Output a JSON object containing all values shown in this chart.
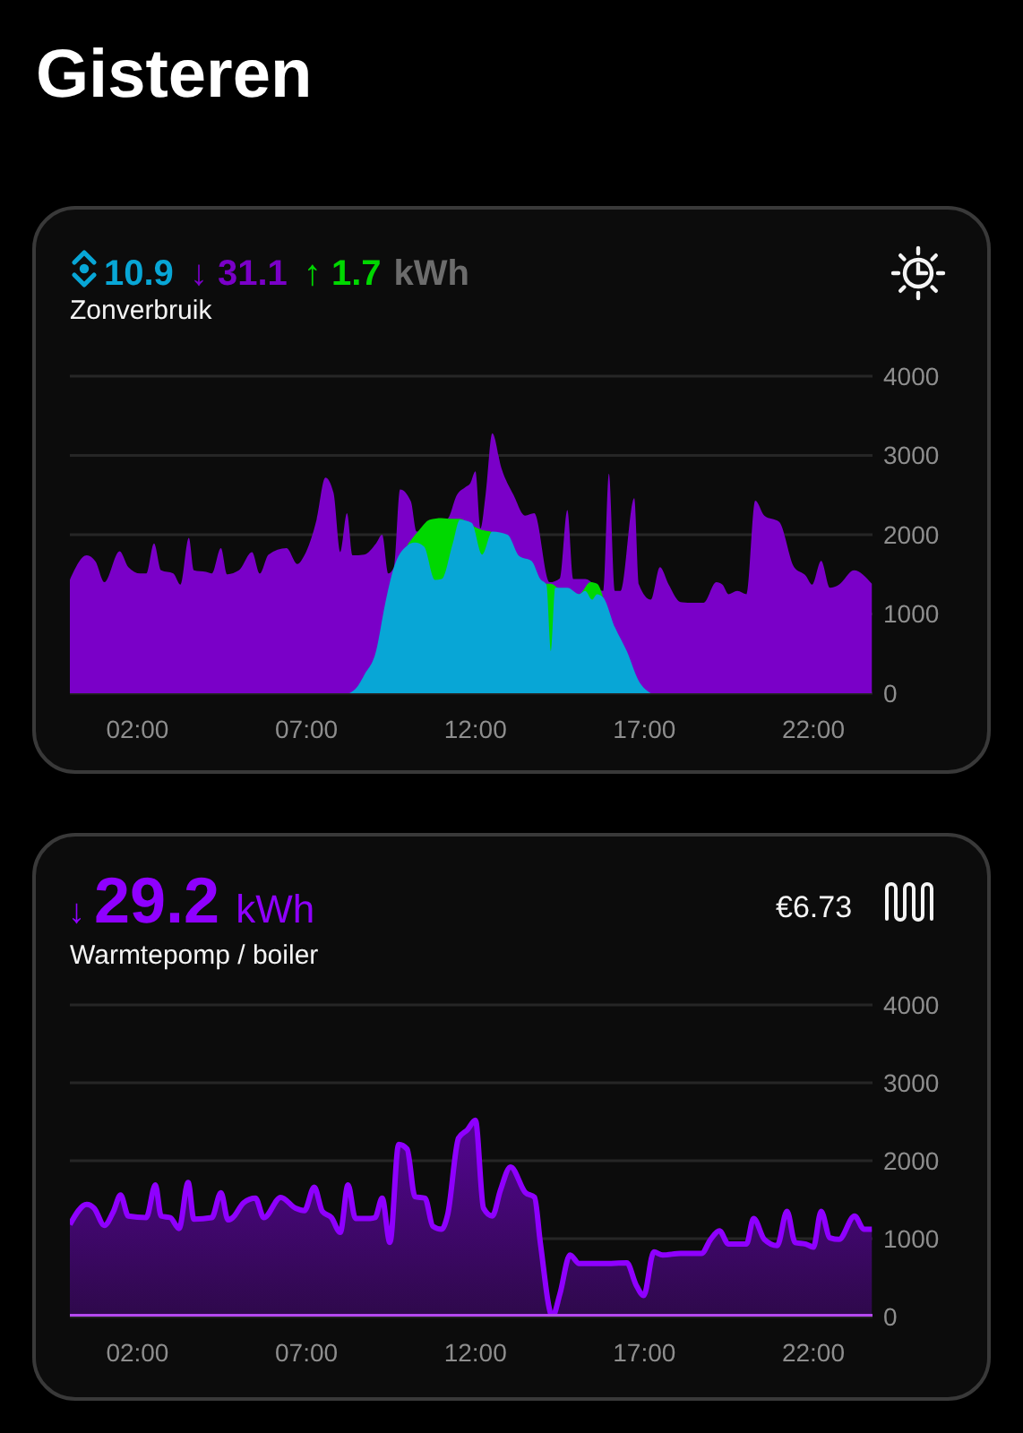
{
  "chart_data": [
    {
      "type": "area",
      "title": "Zonverbruik",
      "annotations": [
        "Gisteren",
        "10.9",
        "↓ 31.1",
        "↑ 1.7",
        "kWh"
      ],
      "xlim": [
        0,
        23.75
      ],
      "xticks": [
        {
          "value": 2,
          "label": "02:00"
        },
        {
          "value": 7,
          "label": "07:00"
        },
        {
          "value": 12,
          "label": "12:00"
        },
        {
          "value": 17,
          "label": "17:00"
        },
        {
          "value": 22,
          "label": "22:00"
        }
      ],
      "ylim": [
        0,
        4000
      ],
      "yticks": [
        0,
        1000,
        2000,
        3000,
        4000
      ],
      "grid": "y",
      "series": [
        {
          "color": "#7a00c8",
          "x": [
            0,
            0.5,
            0.76,
            1.02,
            1.47,
            1.73,
            2.08,
            2.26,
            2.49,
            2.7,
            3.06,
            3.27,
            3.52,
            3.67,
            4.03,
            4.2,
            4.47,
            4.65,
            5.0,
            5.39,
            5.62,
            5.88,
            6.41,
            6.73,
            6.94,
            7.3,
            7.56,
            7.8,
            8.0,
            8.2,
            8.36,
            8.71,
            9.06,
            9.24,
            9.42,
            9.59,
            9.77,
            10.09,
            10.26,
            11.18,
            11.45,
            11.7,
            11.85,
            12.0,
            12.15,
            12.3,
            12.5,
            12.77,
            13.13,
            13.47,
            13.74,
            14.2,
            14.5,
            14.72,
            14.9,
            15.25,
            15.78,
            15.95,
            16.13,
            16.3,
            16.7,
            16.84,
            17.19,
            17.46,
            17.72,
            18.07,
            18.43,
            18.75,
            19.13,
            19.31,
            19.49,
            19.75,
            20.02,
            20.28,
            20.55,
            20.99,
            21.43,
            21.78,
            21.96,
            22.23,
            22.49,
            22.76,
            23.2,
            23.73
          ],
          "values": [
            1430,
            1740,
            1660,
            1400,
            1790,
            1590,
            1510,
            1510,
            1890,
            1550,
            1510,
            1370,
            1960,
            1550,
            1530,
            1510,
            1830,
            1500,
            1550,
            1780,
            1510,
            1750,
            1830,
            1630,
            1740,
            2190,
            2720,
            2530,
            1780,
            2270,
            1740,
            1750,
            1890,
            2000,
            1510,
            1590,
            2570,
            2420,
            2040,
            2200,
            2500,
            2600,
            2650,
            2800,
            2080,
            2500,
            3280,
            2840,
            2500,
            2240,
            2270,
            1400,
            1450,
            2310,
            1440,
            1440,
            1290,
            2770,
            1290,
            1290,
            2460,
            1370,
            1180,
            1590,
            1370,
            1150,
            1140,
            1140,
            1400,
            1370,
            1250,
            1290,
            1250,
            2430,
            2240,
            2160,
            1590,
            1480,
            1370,
            1670,
            1330,
            1370,
            1550,
            1380
          ]
        },
        {
          "color": "#00d800",
          "x": [
            10.0,
            10.3,
            10.65,
            11.0,
            11.3,
            11.54,
            11.89,
            12.2,
            12.45,
            13.9,
            14.1,
            14.24,
            14.4,
            15.07,
            15.4,
            15.6,
            15.78
          ],
          "values": [
            1880,
            2040,
            2190,
            2210,
            2200,
            2200,
            2120,
            2060,
            2040,
            1440,
            1380,
            1380,
            1340,
            1250,
            1400,
            1380,
            1210
          ]
        },
        {
          "color": "#08a6d6",
          "x": [
            8.27,
            8.5,
            8.71,
            9.06,
            9.33,
            9.59,
            9.95,
            10.21,
            10.48,
            10.8,
            11.0,
            11.33,
            11.54,
            11.89,
            12.2,
            12.5,
            12.95,
            13.3,
            13.66,
            13.92,
            14.1,
            14.24,
            14.36,
            14.72,
            15.07,
            15.25,
            15.45,
            15.6,
            15.78,
            16.13,
            16.48,
            16.84,
            17.19
          ],
          "values": [
            0,
            80,
            230,
            530,
            1130,
            1590,
            1850,
            1900,
            1850,
            1430,
            1440,
            1890,
            2190,
            2150,
            1750,
            2040,
            2000,
            1730,
            1670,
            1440,
            1370,
            530,
            1330,
            1330,
            1250,
            1290,
            1180,
            1250,
            1210,
            830,
            530,
            150,
            0
          ]
        }
      ]
    },
    {
      "type": "area",
      "title": "Warmtepomp / boiler",
      "annotations": [
        "↓",
        "29.2",
        "kWh",
        "€6.73"
      ],
      "xlim": [
        0,
        23.75
      ],
      "xticks": [
        {
          "value": 2,
          "label": "02:00"
        },
        {
          "value": 7,
          "label": "07:00"
        },
        {
          "value": 12,
          "label": "12:00"
        },
        {
          "value": 17,
          "label": "17:00"
        },
        {
          "value": 22,
          "label": "22:00"
        }
      ],
      "ylim": [
        0,
        4000
      ],
      "yticks": [
        0,
        1000,
        2000,
        3000,
        4000
      ],
      "grid": "y",
      "line_style": "solid",
      "series": [
        {
          "color": "#8f00ff",
          "x": [
            0,
            0.5,
            0.72,
            1.02,
            1.29,
            1.5,
            1.73,
            2.26,
            2.53,
            2.7,
            2.97,
            3.23,
            3.5,
            3.67,
            4.2,
            4.47,
            4.68,
            4.82,
            5.14,
            5.49,
            5.74,
            6.24,
            6.68,
            6.94,
            7.23,
            7.47,
            7.74,
            8.0,
            8.23,
            8.45,
            8.89,
            9.03,
            9.24,
            9.47,
            9.73,
            9.98,
            10.21,
            10.51,
            10.74,
            11.0,
            11.18,
            11.5,
            11.77,
            12.0,
            12.24,
            12.5,
            12.74,
            13.04,
            13.48,
            13.75,
            13.92,
            14.28,
            14.5,
            14.8,
            15.07,
            15.78,
            16.48,
            16.75,
            16.98,
            17.28,
            17.54,
            18.07,
            18.69,
            18.96,
            19.22,
            19.49,
            20.02,
            20.23,
            20.55,
            20.93,
            21.22,
            21.46,
            21.78,
            22.0,
            22.23,
            22.49,
            22.76,
            23.22,
            23.5,
            23.73
          ],
          "values": [
            1180,
            1440,
            1390,
            1170,
            1350,
            1560,
            1290,
            1270,
            1690,
            1290,
            1270,
            1130,
            1720,
            1250,
            1270,
            1590,
            1240,
            1270,
            1460,
            1520,
            1270,
            1530,
            1390,
            1360,
            1660,
            1350,
            1270,
            1080,
            1690,
            1260,
            1260,
            1270,
            1520,
            950,
            2210,
            2150,
            1540,
            1520,
            1160,
            1120,
            1310,
            2290,
            2400,
            2520,
            1390,
            1290,
            1620,
            1920,
            1590,
            1530,
            950,
            0,
            290,
            790,
            680,
            680,
            690,
            410,
            270,
            830,
            790,
            810,
            810,
            990,
            1100,
            930,
            930,
            1260,
            990,
            910,
            1350,
            950,
            930,
            890,
            1350,
            1010,
            990,
            1290,
            1120,
            1120
          ]
        },
        {
          "type": "line",
          "color": "#b548f0",
          "x": [
            0,
            23.75
          ],
          "values": [
            0,
            0
          ]
        }
      ]
    }
  ]
}
